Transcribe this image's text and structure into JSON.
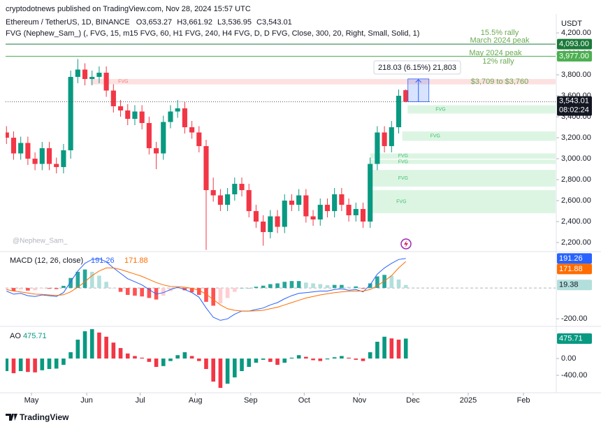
{
  "header": {
    "source": "cryptodotnews published on TradingView.com, Nov 28, 2024 15:57 UTC",
    "symbol": "Ethereum / TetherUS, 1D, BINANCE",
    "ohlc": [
      "O3,653.27",
      "H3,661.92",
      "L3,536.95",
      "C3,543.01"
    ],
    "indicator": "FVG (Nephew_Sam_) (, FVG, 15, m15 FVG, 60, H1 FVG, 240, H4 FVG, D, D FVG, Close, 300, 20, Right, Small, Solid, 1)",
    "currency": "USDT",
    "watermark": "@Nephew_Sam_",
    "footer": "TradingView"
  },
  "chart_data": [
    {
      "type": "candlestick",
      "x": [
        -14,
        -10,
        -6,
        -2,
        2,
        6,
        10,
        14,
        18,
        22,
        26,
        30,
        34,
        38,
        42,
        46,
        50,
        54,
        58,
        62,
        66,
        70,
        74,
        78,
        82,
        86,
        90,
        94,
        98,
        102,
        106,
        110,
        114,
        118,
        122,
        126,
        130,
        134,
        138,
        142,
        146,
        150,
        154,
        158,
        162,
        166,
        170,
        174,
        178,
        182,
        186,
        190,
        194,
        198,
        202,
        206,
        210
      ],
      "open": [
        3250,
        3200,
        3050,
        3150,
        3000,
        2950,
        3100,
        2950,
        2920,
        3080,
        3780,
        3850,
        3760,
        3780,
        3820,
        3650,
        3500,
        3460,
        3380,
        3450,
        3340,
        3100,
        3050,
        3350,
        3450,
        3480,
        3300,
        3250,
        3120,
        2700,
        2650,
        2560,
        2660,
        2760,
        2700,
        2500,
        2400,
        2300,
        2450,
        2350,
        2600,
        2560,
        2650,
        2450,
        2420,
        2560,
        2500,
        2660,
        2560,
        2460,
        2520,
        2400,
        2950,
        3250,
        3120,
        3300,
        3653.27
      ],
      "high": [
        3310,
        3260,
        3210,
        3210,
        3060,
        3160,
        3160,
        3010,
        3140,
        3840,
        3950,
        3910,
        3840,
        3880,
        3880,
        3710,
        3560,
        3520,
        3510,
        3510,
        3400,
        3160,
        3410,
        3510,
        3560,
        3540,
        3360,
        3310,
        3180,
        2820,
        2710,
        2720,
        2820,
        2820,
        2760,
        2560,
        2460,
        2510,
        2510,
        2660,
        2660,
        2710,
        2710,
        2510,
        2620,
        2620,
        2720,
        2720,
        2620,
        2580,
        2580,
        3010,
        3310,
        3310,
        3360,
        3660,
        3661.92
      ],
      "low": [
        3140,
        2990,
        2990,
        2940,
        2890,
        2890,
        2890,
        2860,
        2860,
        3000,
        3720,
        3700,
        3700,
        3720,
        3590,
        3440,
        3400,
        3320,
        3320,
        3280,
        3040,
        2900,
        2990,
        3290,
        3390,
        3240,
        3190,
        3060,
        2130,
        2590,
        2500,
        2500,
        2600,
        2640,
        2440,
        2340,
        2170,
        2240,
        2290,
        2290,
        2500,
        2500,
        2390,
        2360,
        2360,
        2440,
        2440,
        2500,
        2400,
        2400,
        2340,
        2340,
        2890,
        3060,
        3060,
        3240,
        3536.95
      ],
      "close": [
        3200,
        3050,
        3150,
        3000,
        2950,
        3100,
        2950,
        2920,
        3080,
        3780,
        3850,
        3760,
        3780,
        3820,
        3650,
        3500,
        3460,
        3380,
        3450,
        3340,
        3100,
        3050,
        3350,
        3450,
        3480,
        3300,
        3250,
        3120,
        2700,
        2650,
        2560,
        2660,
        2760,
        2700,
        2500,
        2400,
        2300,
        2450,
        2350,
        2600,
        2560,
        2650,
        2450,
        2420,
        2560,
        2500,
        2660,
        2560,
        2460,
        2520,
        2400,
        2950,
        3250,
        3120,
        3300,
        3600,
        3543.01
      ],
      "up_color": "#089981",
      "down_color": "#f23645",
      "xlim": [
        -14.5,
        294
      ],
      "xticks": [
        {
          "value": 0,
          "label": "May"
        },
        {
          "value": 31,
          "label": "Jun"
        },
        {
          "value": 61,
          "label": "Jul"
        },
        {
          "value": 92,
          "label": "Aug"
        },
        {
          "value": 123,
          "label": "Sep"
        },
        {
          "value": 153,
          "label": "Oct"
        },
        {
          "value": 184,
          "label": "Nov"
        },
        {
          "value": 214,
          "label": "Dec"
        },
        {
          "value": 245,
          "label": "2025"
        },
        {
          "value": 276,
          "label": "Feb"
        }
      ],
      "ylim": [
        2127,
        4327
      ],
      "yticks": [
        {
          "value": 2200,
          "label": "2,200.00"
        },
        {
          "value": 2400,
          "label": "2,400.00"
        },
        {
          "value": 2600,
          "label": "2,600.00"
        },
        {
          "value": 2800,
          "label": "2,800.00"
        },
        {
          "value": 3000,
          "label": "3,000.00"
        },
        {
          "value": 3200,
          "label": "3,200.00"
        },
        {
          "value": 3400,
          "label": "3,400.00"
        },
        {
          "value": 3600,
          "label": "3,600.00"
        },
        {
          "value": 3800,
          "label": "3,800.00"
        },
        {
          "value": 4000,
          "label": "4,000.00"
        },
        {
          "value": 4200,
          "label": "4,200.00"
        }
      ],
      "grid": false,
      "levels": [
        {
          "value": 4093,
          "label": "4,093.00",
          "color": "#1b7a3a"
        },
        {
          "value": 3977,
          "label": "3,977.00",
          "color": "#4caf50"
        }
      ],
      "last": {
        "value": 3543.01,
        "label": "3,543.01",
        "countdown": "08:02:24"
      },
      "zones": [
        {
          "label": "FVG",
          "low": 3709,
          "high": 3760,
          "start": 33,
          "color": "#fde0e0",
          "text_color": "#f08080"
        },
        {
          "label": "FVG",
          "low": 3430,
          "high": 3510,
          "start": 211,
          "color": "#dcf5e3",
          "text_color": "#3fbf6f"
        },
        {
          "label": "FVG",
          "low": 3170,
          "high": 3260,
          "start": 208,
          "color": "#dcf5e3",
          "text_color": "#3fbf6f"
        },
        {
          "label": "FVG",
          "low": 3000,
          "high": 3050,
          "start": 190,
          "color": "#dcf5e3",
          "text_color": "#3fbf6f"
        },
        {
          "label": "FVG",
          "low": 2950,
          "high": 2990,
          "start": 190,
          "color": "#dcf5e3",
          "text_color": "#3fbf6f"
        },
        {
          "label": "FVG",
          "low": 2733,
          "high": 2893,
          "start": 190,
          "color": "#dcf5e3",
          "text_color": "#3fbf6f"
        },
        {
          "label": "FVG",
          "low": 2480,
          "high": 2700,
          "start": 189,
          "color": "#dcf5e3",
          "text_color": "#3fbf6f"
        }
      ],
      "annotations": [
        "15.5% rally",
        "March 2024 peak",
        "May 2024 peak",
        "12% rally",
        "$3,709 to $3,760"
      ],
      "annotation_color": "#6aa84f",
      "measure": {
        "from": 3543.01,
        "to": 3761.04,
        "label": "218.03 (6.15%) 21,803"
      }
    },
    {
      "type": "line",
      "title": "MACD (12, 26, close)",
      "ylim": [
        -240,
        227
      ],
      "yticks": [
        {
          "value": -200,
          "label": "-200.00"
        }
      ],
      "series": [
        {
          "style": "histogram",
          "colors": [
            "#26a69a",
            "#b2dfdb",
            "#ffcdd2",
            "#ff5252"
          ],
          "last_label": "19.38",
          "values": [
            -10,
            -20,
            -9,
            -17,
            -15,
            -3,
            -5,
            -7,
            14,
            65,
            105,
            120,
            105,
            80,
            40,
            0,
            -25,
            -45,
            -50,
            -55,
            -65,
            -75,
            -50,
            -20,
            -3,
            -15,
            -28,
            -45,
            -90,
            -115,
            -100,
            -65,
            -25,
            0,
            0,
            8,
            15,
            25,
            30,
            40,
            45,
            45,
            35,
            30,
            25,
            18,
            20,
            20,
            7,
            10,
            -5,
            30,
            75,
            85,
            80,
            55,
            19.38
          ]
        },
        {
          "style": "line",
          "color": "#2962ff",
          "last_label": "191.26",
          "values": [
            -20,
            -40,
            -35,
            -50,
            -55,
            -45,
            -50,
            -55,
            -30,
            40,
            110,
            160,
            185,
            190,
            170,
            130,
            95,
            60,
            40,
            20,
            -10,
            -40,
            -30,
            -10,
            5,
            -10,
            -30,
            -60,
            -130,
            -190,
            -210,
            -200,
            -170,
            -150,
            -150,
            -140,
            -130,
            -110,
            -95,
            -70,
            -50,
            -35,
            -30,
            -25,
            -20,
            -20,
            -10,
            -5,
            -15,
            -10,
            -25,
            20,
            90,
            130,
            160,
            185,
            191.26
          ]
        },
        {
          "style": "line",
          "color": "#ff6d00",
          "last_label": "171.88",
          "values": [
            -10,
            -20,
            -26,
            -33,
            -40,
            -42,
            -45,
            -48,
            -44,
            -25,
            5,
            40,
            80,
            110,
            130,
            130,
            120,
            105,
            90,
            75,
            55,
            35,
            20,
            10,
            8,
            5,
            -2,
            -15,
            -40,
            -75,
            -110,
            -135,
            -145,
            -150,
            -150,
            -148,
            -145,
            -135,
            -125,
            -110,
            -95,
            -80,
            -65,
            -55,
            -45,
            -38,
            -30,
            -25,
            -22,
            -20,
            -20,
            -10,
            15,
            45,
            80,
            130,
            171.88
          ]
        }
      ]
    },
    {
      "type": "histogram",
      "title": "AO",
      "ylim": [
        -783,
        717
      ],
      "yticks": [
        {
          "value": 0,
          "label": "0.00"
        },
        {
          "value": -400,
          "label": "-400.00"
        }
      ],
      "up_color": "#089981",
      "down_color": "#f23645",
      "last_label": "475.71",
      "values": [
        -300,
        -350,
        -300,
        -320,
        -330,
        -280,
        -250,
        -240,
        -150,
        150,
        450,
        650,
        700,
        620,
        520,
        380,
        250,
        120,
        60,
        20,
        -80,
        -200,
        -180,
        -60,
        80,
        150,
        60,
        -60,
        -250,
        -550,
        -700,
        -600,
        -450,
        -300,
        -200,
        -100,
        -30,
        -80,
        -150,
        -100,
        20,
        80,
        40,
        -40,
        -60,
        -20,
        30,
        60,
        20,
        -30,
        -60,
        150,
        400,
        520,
        480,
        450,
        475.71
      ]
    }
  ]
}
